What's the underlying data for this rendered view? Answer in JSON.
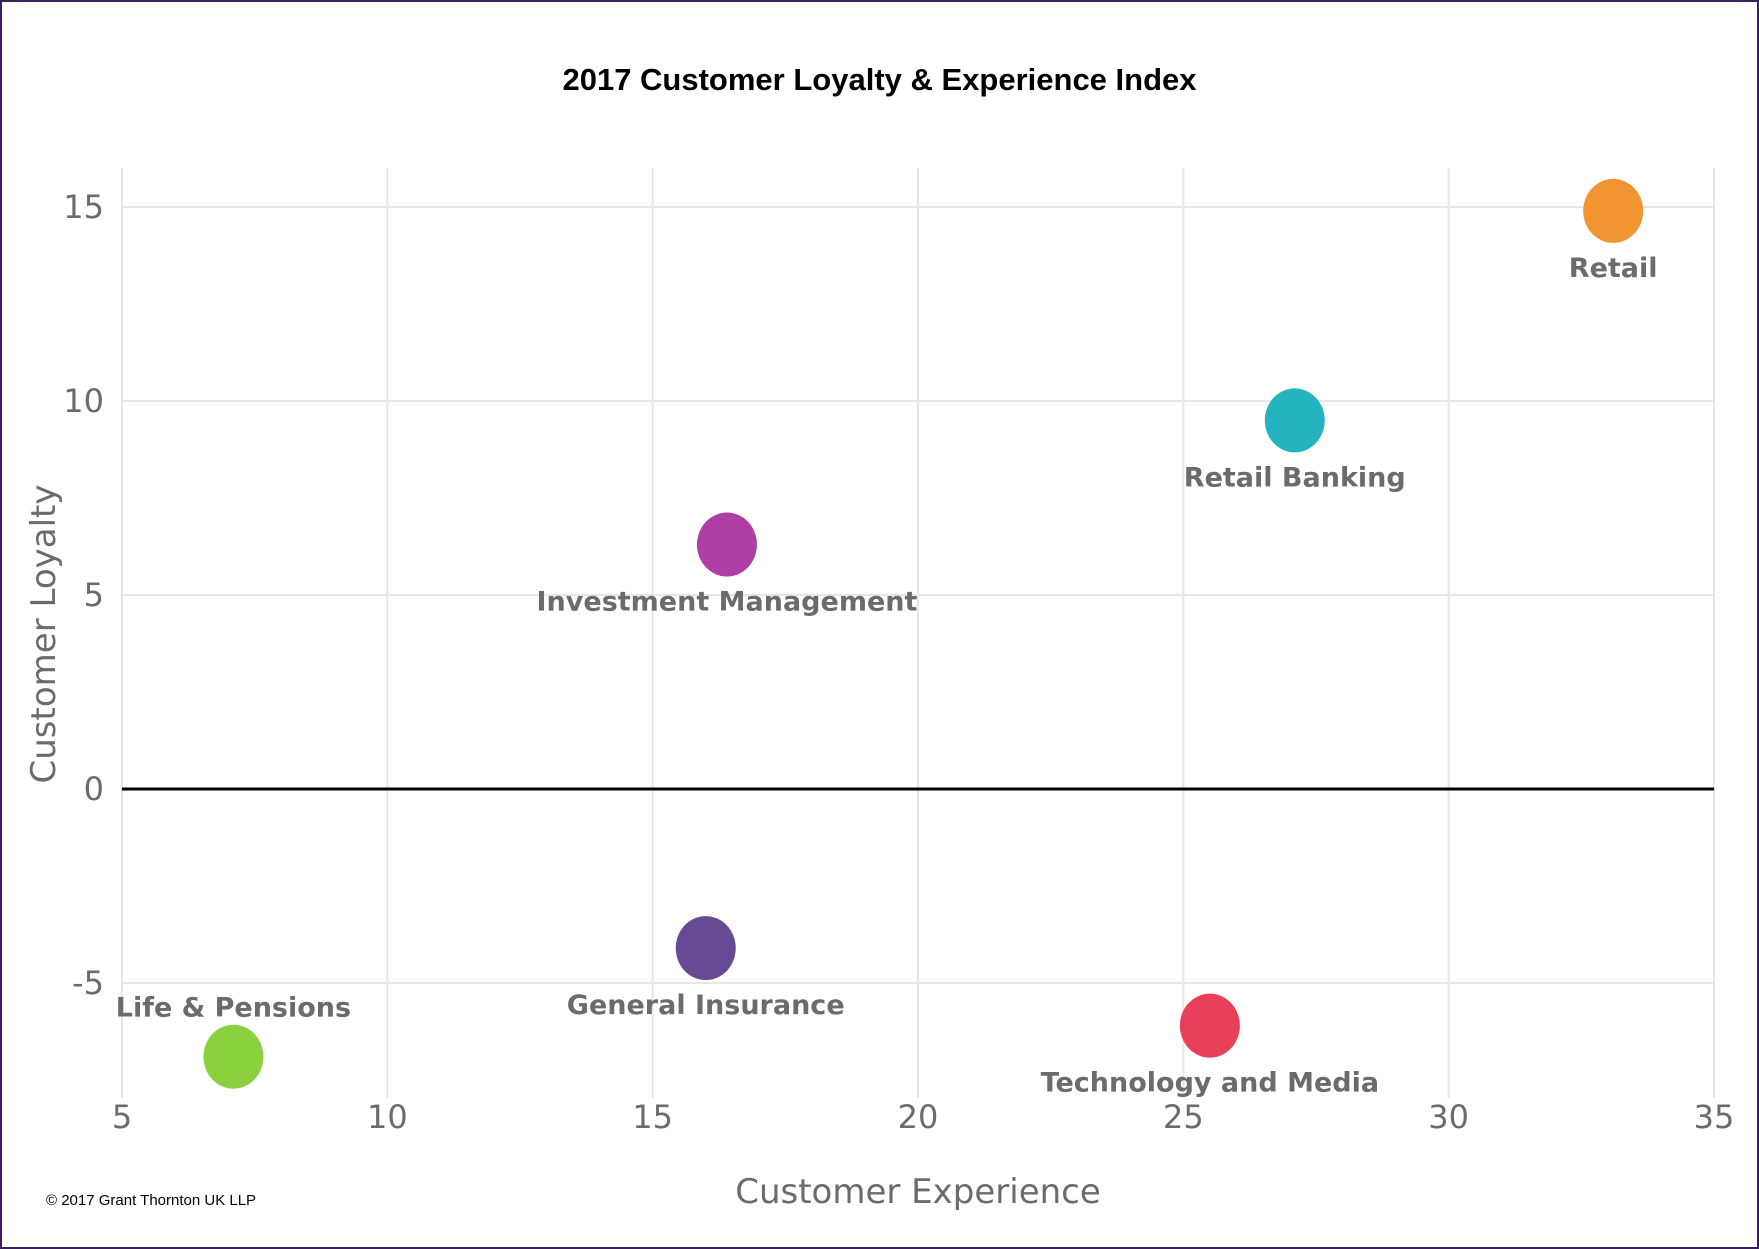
{
  "chart_data": {
    "type": "scatter",
    "title": "2017 Customer Loyalty & Experience Index",
    "xlabel": "Customer Experience",
    "ylabel": "Customer Loyalty",
    "xlim": [
      5,
      35
    ],
    "ylim": [
      -8,
      16
    ],
    "xticks": [
      "5",
      "10",
      "15",
      "20",
      "25",
      "30",
      "35"
    ],
    "yticks": [
      "15",
      "10",
      "5",
      "0",
      "-5"
    ],
    "grid": true,
    "zero_line": true,
    "points": [
      {
        "name": "Retail",
        "x": 33.1,
        "y": 14.9,
        "color": "#f39433",
        "label_pos": "below"
      },
      {
        "name": "Retail Banking",
        "x": 27.1,
        "y": 9.5,
        "color": "#24b4c0",
        "label_pos": "below"
      },
      {
        "name": "Investment Management",
        "x": 16.4,
        "y": 6.3,
        "color": "#b03fa5",
        "label_pos": "below"
      },
      {
        "name": "General Insurance",
        "x": 16.0,
        "y": -4.1,
        "color": "#664b94",
        "label_pos": "below"
      },
      {
        "name": "Technology and Media",
        "x": 25.5,
        "y": -6.1,
        "color": "#e8405a",
        "label_pos": "below"
      },
      {
        "name": "Life & Pensions",
        "x": 7.1,
        "y": -6.9,
        "color": "#8bd13f",
        "label_pos": "above"
      }
    ]
  },
  "footer": {
    "copyright": "© 2017 Grant Thornton UK LLP"
  }
}
